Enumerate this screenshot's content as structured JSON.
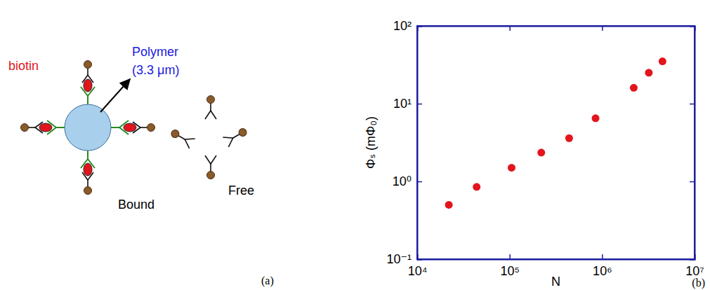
{
  "chart_data": {
    "type": "scatter",
    "x_label": "N",
    "y_label": "Φₛ (mΦ₀)",
    "annotations": [
      "(b)"
    ],
    "log": true,
    "color": "#e3141c",
    "marker": "circle",
    "x": [
      22000,
      44000,
      105000,
      220000,
      440000,
      850000,
      2200000,
      3200000,
      4500000
    ],
    "values": [
      0.5,
      0.85,
      1.5,
      2.35,
      3.6,
      6.5,
      16,
      25,
      35
    ],
    "xlim": [
      10000,
      10000000
    ],
    "ylim": [
      0.1,
      100
    ],
    "xticks": [
      {
        "value": 10000,
        "label": "10⁴"
      },
      {
        "value": 100000,
        "label": "10⁵"
      },
      {
        "value": 1000000,
        "label": "10⁶"
      },
      {
        "value": 10000000,
        "label": "10⁷"
      }
    ],
    "yticks": [
      {
        "value": 0.1,
        "label": "10⁻¹"
      },
      {
        "value": 1,
        "label": "10⁰"
      },
      {
        "value": 10,
        "label": "10¹"
      },
      {
        "value": 100,
        "label": "10²"
      }
    ]
  },
  "diagram": {
    "label": "(a)",
    "biotin": "biotin",
    "polymer": "Polymer",
    "polymer_size": "(3.3 μm)",
    "bound": "Bound",
    "free": "Free"
  }
}
